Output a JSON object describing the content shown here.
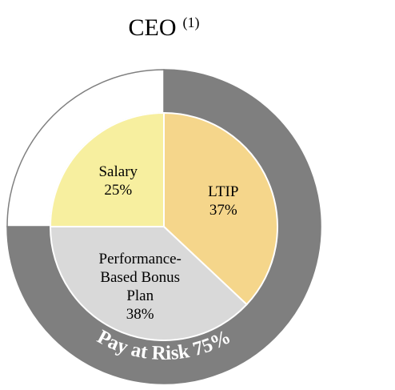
{
  "chart_data": {
    "type": "pie",
    "title": "CEO",
    "title_note": "(1)",
    "categories": [
      "Salary",
      "LTIP",
      "Performance-Based Bonus Plan"
    ],
    "values": [
      25,
      37,
      38
    ],
    "value_labels": [
      "25%",
      "37%",
      "38%"
    ],
    "colors": [
      "#f7ef9f",
      "#f5d68b",
      "#d9d9d9"
    ],
    "start": "top",
    "direction": "clockwise",
    "order": [
      1,
      2,
      0
    ],
    "ring": {
      "categories": [
        "Pay at Risk",
        null
      ],
      "values": [
        75,
        25
      ],
      "value_labels": [
        "75%",
        null
      ],
      "colors": [
        "#7f7f7f",
        "#ffffff"
      ]
    }
  }
}
